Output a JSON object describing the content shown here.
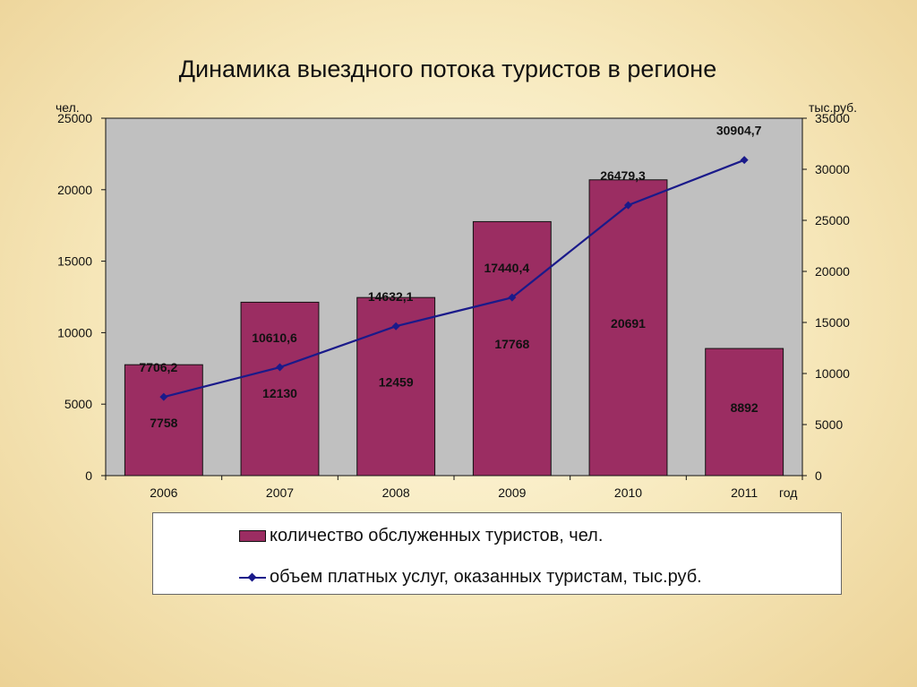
{
  "colors": {
    "bar": "#9b2d62",
    "line": "#1a1a8a",
    "plot_bg": "#c0c0c0"
  },
  "chart_data": {
    "type": "bar",
    "title": "Динамика выездного потока туристов в регионе",
    "left_axis_label": "чел.",
    "right_axis_label": "тыс.руб.",
    "xlabel": "год",
    "categories": [
      "2006",
      "2007",
      "2008",
      "2009",
      "2010",
      "2011"
    ],
    "ylim_left": [
      0,
      25000
    ],
    "yticks_left": [
      "0",
      "5000",
      "10000",
      "15000",
      "20000",
      "25000"
    ],
    "ylim_right": [
      0,
      35000
    ],
    "yticks_right": [
      "0",
      "5000",
      "10000",
      "15000",
      "20000",
      "25000",
      "30000",
      "35000"
    ],
    "series": [
      {
        "name": "количество обслуженных туристов, чел.",
        "type": "bar",
        "axis": "left",
        "values": [
          7758,
          12130,
          12459,
          17768,
          20691,
          8892
        ],
        "labels": [
          "7758",
          "12130",
          "12459",
          "17768",
          "20691",
          "8892"
        ]
      },
      {
        "name": "объем платных услуг, оказанных туристам, тыс.руб.",
        "type": "line",
        "axis": "right",
        "values": [
          7706.2,
          10610.6,
          14632.1,
          17440.4,
          26479.3,
          30904.7
        ],
        "labels": [
          "7706,2",
          "10610,6",
          "14632,1",
          "17440,4",
          "26479,3",
          "30904,7"
        ]
      }
    ],
    "grid": false,
    "legend_position": "bottom"
  }
}
